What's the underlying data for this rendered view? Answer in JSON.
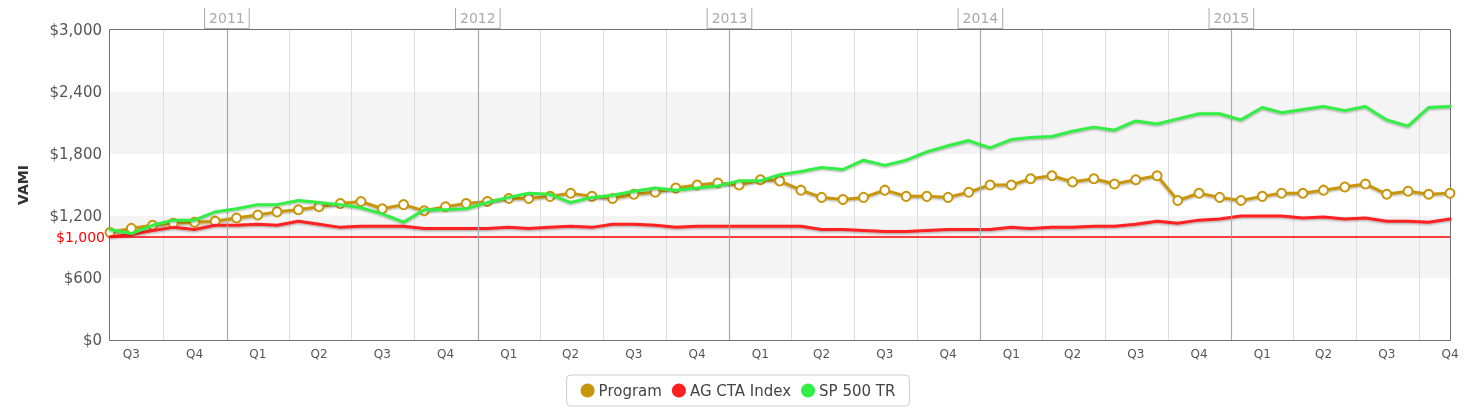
{
  "chart_data": {
    "type": "line",
    "ylabel": "VAMI",
    "x": [
      "2010-07-15",
      "2010-08-15",
      "2010-09-15",
      "2010-10-15",
      "2010-11-15",
      "2010-12-15",
      "2011-01-15",
      "2011-02-15",
      "2011-03-15",
      "2011-04-15",
      "2011-05-15",
      "2011-06-15",
      "2011-07-15",
      "2011-08-15",
      "2011-09-15",
      "2011-10-15",
      "2011-11-15",
      "2011-12-15",
      "2012-01-15",
      "2012-02-15",
      "2012-03-15",
      "2012-04-15",
      "2012-05-15",
      "2012-06-15",
      "2012-07-15",
      "2012-08-15",
      "2012-09-15",
      "2012-10-15",
      "2012-11-15",
      "2012-12-15",
      "2013-01-15",
      "2013-02-15",
      "2013-03-15",
      "2013-04-15",
      "2013-05-15",
      "2013-06-15",
      "2013-07-15",
      "2013-08-15",
      "2013-09-15",
      "2013-10-15",
      "2013-11-15",
      "2013-12-15",
      "2014-01-15",
      "2014-02-15",
      "2014-03-15",
      "2014-04-15",
      "2014-05-15",
      "2014-06-15",
      "2014-07-15",
      "2014-08-15",
      "2014-09-15",
      "2014-10-15",
      "2014-11-15",
      "2014-12-15",
      "2015-01-15",
      "2015-02-15",
      "2015-03-15",
      "2015-04-15",
      "2015-05-15",
      "2015-06-15",
      "2015-07-15",
      "2015-08-15",
      "2015-09-15",
      "2015-10-15",
      "2015-11-15"
    ],
    "series": [
      {
        "name": "Program",
        "color": "#c8960a",
        "marker": "circle",
        "values": [
          1040,
          1080,
          1110,
          1130,
          1140,
          1150,
          1180,
          1210,
          1240,
          1260,
          1290,
          1320,
          1340,
          1270,
          1310,
          1250,
          1290,
          1320,
          1340,
          1370,
          1370,
          1390,
          1420,
          1390,
          1370,
          1410,
          1430,
          1470,
          1500,
          1520,
          1500,
          1550,
          1540,
          1450,
          1380,
          1360,
          1380,
          1450,
          1390,
          1390,
          1380,
          1430,
          1500,
          1500,
          1560,
          1590,
          1530,
          1560,
          1510,
          1550,
          1590,
          1350,
          1420,
          1380,
          1350,
          1390,
          1420,
          1420,
          1450,
          1480,
          1510,
          1410,
          1440,
          1410,
          1420
        ]
      },
      {
        "name": "AG CTA Index",
        "color": "#ff2020",
        "marker": "none",
        "values": [
          1000,
          1020,
          1060,
          1090,
          1070,
          1110,
          1110,
          1120,
          1110,
          1150,
          1120,
          1090,
          1100,
          1100,
          1100,
          1080,
          1080,
          1080,
          1080,
          1090,
          1080,
          1090,
          1100,
          1090,
          1120,
          1120,
          1110,
          1090,
          1100,
          1100,
          1100,
          1100,
          1100,
          1100,
          1070,
          1070,
          1060,
          1050,
          1050,
          1060,
          1070,
          1070,
          1070,
          1090,
          1080,
          1090,
          1090,
          1100,
          1100,
          1120,
          1150,
          1130,
          1160,
          1170,
          1200,
          1200,
          1200,
          1180,
          1190,
          1170,
          1180,
          1150,
          1150,
          1140,
          1170
        ]
      },
      {
        "name": "SP 500 TR",
        "color": "#33ee44",
        "marker": "none",
        "values": [
          1070,
          1030,
          1110,
          1160,
          1160,
          1240,
          1270,
          1310,
          1310,
          1350,
          1330,
          1310,
          1280,
          1220,
          1140,
          1260,
          1260,
          1270,
          1330,
          1380,
          1420,
          1410,
          1330,
          1380,
          1400,
          1440,
          1470,
          1450,
          1470,
          1490,
          1540,
          1540,
          1600,
          1630,
          1670,
          1650,
          1740,
          1690,
          1740,
          1820,
          1880,
          1930,
          1860,
          1940,
          1960,
          1970,
          2020,
          2060,
          2030,
          2120,
          2090,
          2140,
          2190,
          2190,
          2130,
          2250,
          2200,
          2230,
          2260,
          2220,
          2260,
          2130,
          2070,
          2250,
          2260
        ]
      }
    ],
    "xlim": [
      "2010-07-15",
      "2015-11-15"
    ],
    "xticks": [
      {
        "value": "2010-08-15",
        "label": "Q3"
      },
      {
        "value": "2010-10-01",
        "label": null
      },
      {
        "value": "2010-11-15",
        "label": "Q4"
      },
      {
        "value": "2011-02-15",
        "label": "Q1"
      },
      {
        "value": "2011-04-01",
        "label": null
      },
      {
        "value": "2011-05-15",
        "label": "Q2"
      },
      {
        "value": "2011-07-01",
        "label": null
      },
      {
        "value": "2011-08-15",
        "label": "Q3"
      },
      {
        "value": "2011-10-01",
        "label": null
      },
      {
        "value": "2011-11-15",
        "label": "Q4"
      },
      {
        "value": "2012-02-15",
        "label": "Q1"
      },
      {
        "value": "2012-04-01",
        "label": null
      },
      {
        "value": "2012-05-15",
        "label": "Q2"
      },
      {
        "value": "2012-07-01",
        "label": null
      },
      {
        "value": "2012-08-15",
        "label": "Q3"
      },
      {
        "value": "2012-10-01",
        "label": null
      },
      {
        "value": "2012-11-15",
        "label": "Q4"
      },
      {
        "value": "2013-02-15",
        "label": "Q1"
      },
      {
        "value": "2013-04-01",
        "label": null
      },
      {
        "value": "2013-05-15",
        "label": "Q2"
      },
      {
        "value": "2013-07-01",
        "label": null
      },
      {
        "value": "2013-08-15",
        "label": "Q3"
      },
      {
        "value": "2013-10-01",
        "label": null
      },
      {
        "value": "2013-11-15",
        "label": "Q4"
      },
      {
        "value": "2014-02-15",
        "label": "Q1"
      },
      {
        "value": "2014-04-01",
        "label": null
      },
      {
        "value": "2014-05-15",
        "label": "Q2"
      },
      {
        "value": "2014-07-01",
        "label": null
      },
      {
        "value": "2014-08-15",
        "label": "Q3"
      },
      {
        "value": "2014-10-01",
        "label": null
      },
      {
        "value": "2014-11-15",
        "label": "Q4"
      },
      {
        "value": "2015-02-15",
        "label": "Q1"
      },
      {
        "value": "2015-04-01",
        "label": null
      },
      {
        "value": "2015-05-15",
        "label": "Q2"
      },
      {
        "value": "2015-07-01",
        "label": null
      },
      {
        "value": "2015-08-15",
        "label": "Q3"
      },
      {
        "value": "2015-10-01",
        "label": null
      },
      {
        "value": "2015-11-15",
        "label": "Q4"
      }
    ],
    "ylim": [
      0,
      3000
    ],
    "yticks": [
      {
        "value": 0,
        "label": "$0"
      },
      {
        "value": 600,
        "label": "$600"
      },
      {
        "value": 1200,
        "label": "$1,200"
      },
      {
        "value": 1800,
        "label": "$1,800"
      },
      {
        "value": 2400,
        "label": "$2,400"
      },
      {
        "value": 3000,
        "label": "$3,000"
      }
    ],
    "ref_lines": [
      {
        "axis": "y",
        "value": 1000,
        "label": "$1,000",
        "color": "#ff0000"
      },
      {
        "axis": "x",
        "value": "2011-01-01",
        "label": "2011",
        "color": "#aaaaaa"
      },
      {
        "axis": "x",
        "value": "2012-01-01",
        "label": "2012",
        "color": "#aaaaaa"
      },
      {
        "axis": "x",
        "value": "2013-01-01",
        "label": "2013",
        "color": "#aaaaaa"
      },
      {
        "axis": "x",
        "value": "2014-01-01",
        "label": "2014",
        "color": "#aaaaaa"
      },
      {
        "axis": "x",
        "value": "2015-01-01",
        "label": "2015",
        "color": "#aaaaaa"
      }
    ],
    "grid": true,
    "legend": "bottom",
    "line_style": "solid"
  }
}
